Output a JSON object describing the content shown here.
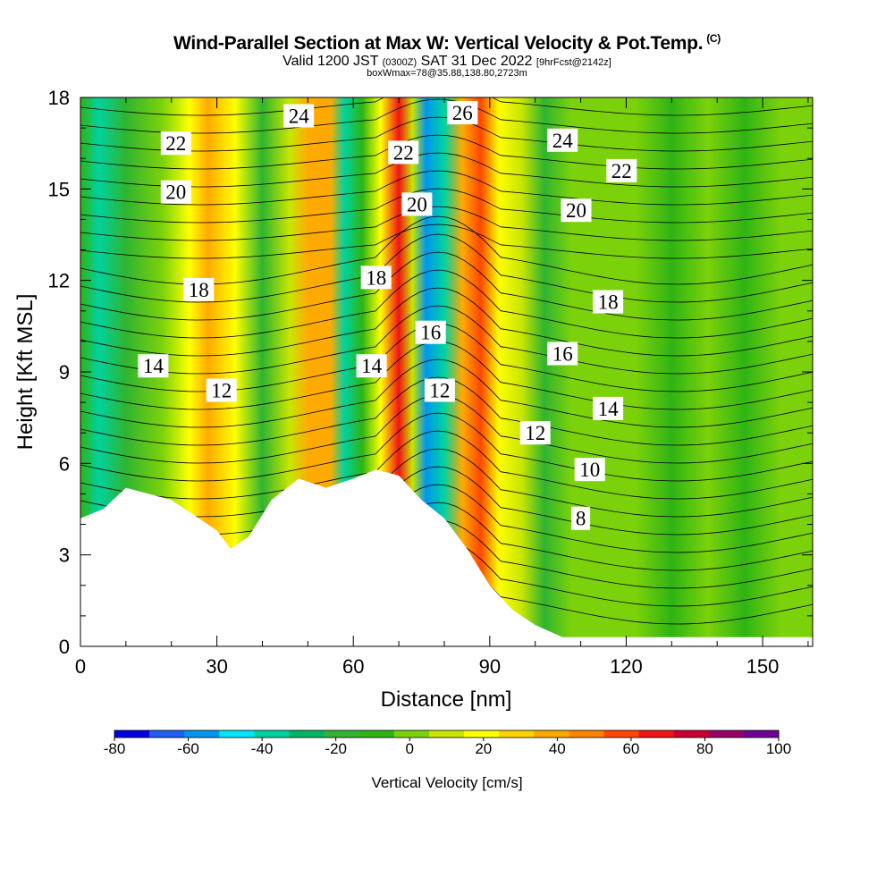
{
  "header": {
    "title": "Wind-Parallel Section at Max W: Vertical Velocity & Pot.Temp.",
    "title_mark": "(C)",
    "valid_prefix": "Valid 1200 JST",
    "valid_zulu": "(0300Z)",
    "valid_date": "SAT 31 Dec 2022",
    "forecast": "[9hrFcst@2142z]",
    "boxwmax": "boxWmax=78@35.88,138.80,2723m"
  },
  "chart_data": {
    "type": "heatmap",
    "xlabel": "Distance [nm]",
    "ylabel": "Height [Kft MSL]",
    "xlim": [
      0,
      161
    ],
    "ylim": [
      0,
      18
    ],
    "x_ticks": [
      0,
      30,
      60,
      90,
      120,
      150
    ],
    "y_ticks": [
      0,
      3,
      6,
      9,
      12,
      15,
      18
    ],
    "colorbar": {
      "label": "Vertical Velocity [cm/s]",
      "range": [
        -80,
        100
      ],
      "tick_values": [
        -80,
        -60,
        -40,
        -20,
        0,
        20,
        40,
        60,
        80,
        100
      ],
      "colors": [
        "#0000e0",
        "#1f5ff0",
        "#0096f0",
        "#00e6ff",
        "#00d2a0",
        "#00b464",
        "#30b430",
        "#2fb414",
        "#7cd20a",
        "#c8e600",
        "#ffff00",
        "#ffd200",
        "#ffaa00",
        "#ff8200",
        "#ff4600",
        "#f01414",
        "#c80032",
        "#960064",
        "#6e0096"
      ]
    },
    "terrain_profile": [
      {
        "x": 0,
        "h": 4.2
      },
      {
        "x": 5,
        "h": 4.5
      },
      {
        "x": 10,
        "h": 5.2
      },
      {
        "x": 20,
        "h": 4.8
      },
      {
        "x": 26,
        "h": 4.2
      },
      {
        "x": 30,
        "h": 3.8
      },
      {
        "x": 33,
        "h": 3.2
      },
      {
        "x": 37,
        "h": 3.6
      },
      {
        "x": 42,
        "h": 4.8
      },
      {
        "x": 48,
        "h": 5.5
      },
      {
        "x": 54,
        "h": 5.2
      },
      {
        "x": 60,
        "h": 5.5
      },
      {
        "x": 65,
        "h": 5.8
      },
      {
        "x": 70,
        "h": 5.6
      },
      {
        "x": 75,
        "h": 4.8
      },
      {
        "x": 80,
        "h": 4.2
      },
      {
        "x": 85,
        "h": 3.2
      },
      {
        "x": 90,
        "h": 2.0
      },
      {
        "x": 95,
        "h": 1.2
      },
      {
        "x": 100,
        "h": 0.7
      },
      {
        "x": 106,
        "h": 0.3
      },
      {
        "x": 161,
        "h": 0.3
      }
    ],
    "w_columns": [
      {
        "x": 0,
        "w": -10
      },
      {
        "x": 4,
        "w": -35
      },
      {
        "x": 10,
        "w": -15
      },
      {
        "x": 18,
        "w": 5
      },
      {
        "x": 24,
        "w": 20
      },
      {
        "x": 28,
        "w": 35
      },
      {
        "x": 34,
        "w": 20
      },
      {
        "x": 40,
        "w": -20
      },
      {
        "x": 46,
        "w": 10
      },
      {
        "x": 50,
        "w": 40
      },
      {
        "x": 55,
        "w": 35
      },
      {
        "x": 58,
        "w": -35
      },
      {
        "x": 62,
        "w": -10
      },
      {
        "x": 66,
        "w": 20
      },
      {
        "x": 70,
        "w": 70
      },
      {
        "x": 73,
        "w": 10
      },
      {
        "x": 76,
        "w": -55
      },
      {
        "x": 80,
        "w": -40
      },
      {
        "x": 84,
        "w": 40
      },
      {
        "x": 88,
        "w": 55
      },
      {
        "x": 92,
        "w": 20
      },
      {
        "x": 97,
        "w": 10
      },
      {
        "x": 102,
        "w": -20
      },
      {
        "x": 108,
        "w": 5
      },
      {
        "x": 114,
        "w": 0
      },
      {
        "x": 122,
        "w": 5
      },
      {
        "x": 130,
        "w": -5
      },
      {
        "x": 138,
        "w": 5
      },
      {
        "x": 146,
        "w": -10
      },
      {
        "x": 154,
        "w": 5
      },
      {
        "x": 161,
        "w": 0
      }
    ],
    "theta_contour_labels": [
      {
        "value": "22",
        "x": 21,
        "y": 16.5
      },
      {
        "value": "24",
        "x": 48,
        "y": 17.4
      },
      {
        "value": "26",
        "x": 84,
        "y": 17.5
      },
      {
        "value": "24",
        "x": 106,
        "y": 16.6
      },
      {
        "value": "22",
        "x": 71,
        "y": 16.2
      },
      {
        "value": "22",
        "x": 119,
        "y": 15.6
      },
      {
        "value": "20",
        "x": 21,
        "y": 14.9
      },
      {
        "value": "20",
        "x": 74,
        "y": 14.5
      },
      {
        "value": "20",
        "x": 109,
        "y": 14.3
      },
      {
        "value": "18",
        "x": 26,
        "y": 11.7
      },
      {
        "value": "18",
        "x": 65,
        "y": 12.1
      },
      {
        "value": "18",
        "x": 116,
        "y": 11.3
      },
      {
        "value": "16",
        "x": 77,
        "y": 10.3
      },
      {
        "value": "16",
        "x": 106,
        "y": 9.6
      },
      {
        "value": "14",
        "x": 16,
        "y": 9.2
      },
      {
        "value": "14",
        "x": 64,
        "y": 9.2
      },
      {
        "value": "14",
        "x": 116,
        "y": 7.8
      },
      {
        "value": "12",
        "x": 31,
        "y": 8.4
      },
      {
        "value": "12",
        "x": 79,
        "y": 8.4
      },
      {
        "value": "12",
        "x": 100,
        "y": 7.0
      },
      {
        "value": "10",
        "x": 112,
        "y": 5.8
      },
      {
        "value": "8",
        "x": 110,
        "y": 4.2
      }
    ]
  }
}
